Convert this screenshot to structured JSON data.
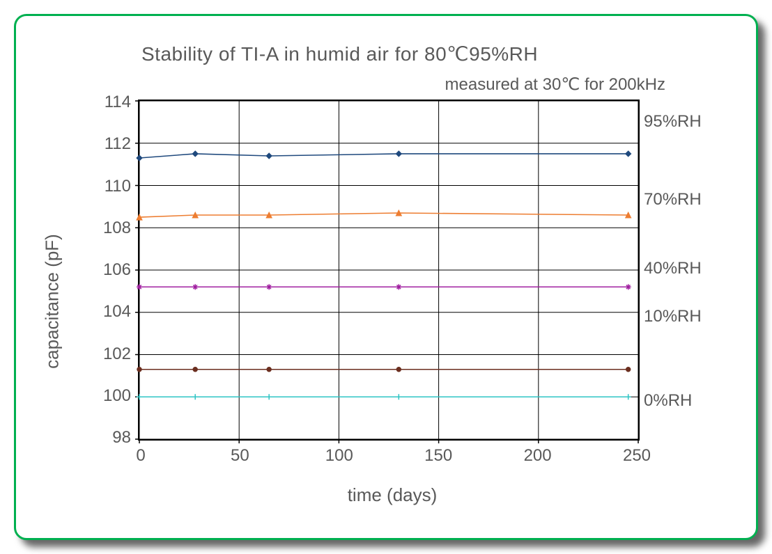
{
  "card": {
    "border_color": "#00b050",
    "background": "#ffffff",
    "shadow": "10px 10px 10px rgba(0,0,0,0.6)"
  },
  "chart": {
    "type": "line",
    "title": "Stability of TI-A in humid air for 80℃95%RH",
    "subtitle": "measured at 30℃ for 200kHz",
    "xlabel": "time (days)",
    "ylabel": "capacitance (pF)",
    "xlim": [
      0,
      250
    ],
    "ylim": [
      98,
      114
    ],
    "xtick_step": 50,
    "ytick_step": 2,
    "xticks": [
      0,
      50,
      100,
      150,
      200,
      250
    ],
    "yticks": [
      98,
      100,
      102,
      104,
      106,
      108,
      110,
      112,
      114
    ],
    "grid_color": "#000000",
    "grid_width": 1,
    "background_color": "#ffffff",
    "text_color": "#595959",
    "title_fontsize": 28,
    "subtitle_fontsize": 24,
    "label_fontsize": 26,
    "tick_fontsize": 24,
    "line_width": 1.5,
    "marker_size": 6,
    "tick_length": 6,
    "series": [
      {
        "name": "95%RH",
        "label": "95%RH",
        "label_y": 113.0,
        "color": "#1f497d",
        "marker": "diamond",
        "x": [
          0,
          28,
          65,
          130,
          245
        ],
        "y": [
          111.3,
          111.5,
          111.4,
          111.5,
          111.5
        ]
      },
      {
        "name": "70%RH",
        "label": "70%RH",
        "label_y": 109.3,
        "color": "#ed7d31",
        "marker": "triangle",
        "x": [
          0,
          28,
          65,
          130,
          245
        ],
        "y": [
          108.5,
          108.6,
          108.6,
          108.7,
          108.6
        ]
      },
      {
        "name": "40%RH",
        "label": "40%RH",
        "label_y": 106.0,
        "color": "#a020a0",
        "marker": "star",
        "x": [
          0,
          28,
          65,
          130,
          245
        ],
        "y": [
          105.2,
          105.2,
          105.2,
          105.2,
          105.2
        ]
      },
      {
        "name": "10%RH",
        "label": "10%RH",
        "label_y": 103.7,
        "color": "#6b2e1f",
        "marker": "circle",
        "x": [
          0,
          28,
          65,
          130,
          245
        ],
        "y": [
          101.3,
          101.3,
          101.3,
          101.3,
          101.3
        ]
      },
      {
        "name": "0%RH",
        "label": "0%RH",
        "label_y": 99.7,
        "color": "#2ec4c4",
        "marker": "plus",
        "x": [
          0,
          28,
          65,
          130,
          245
        ],
        "y": [
          100.0,
          100.0,
          100.0,
          100.0,
          100.0
        ]
      }
    ]
  }
}
